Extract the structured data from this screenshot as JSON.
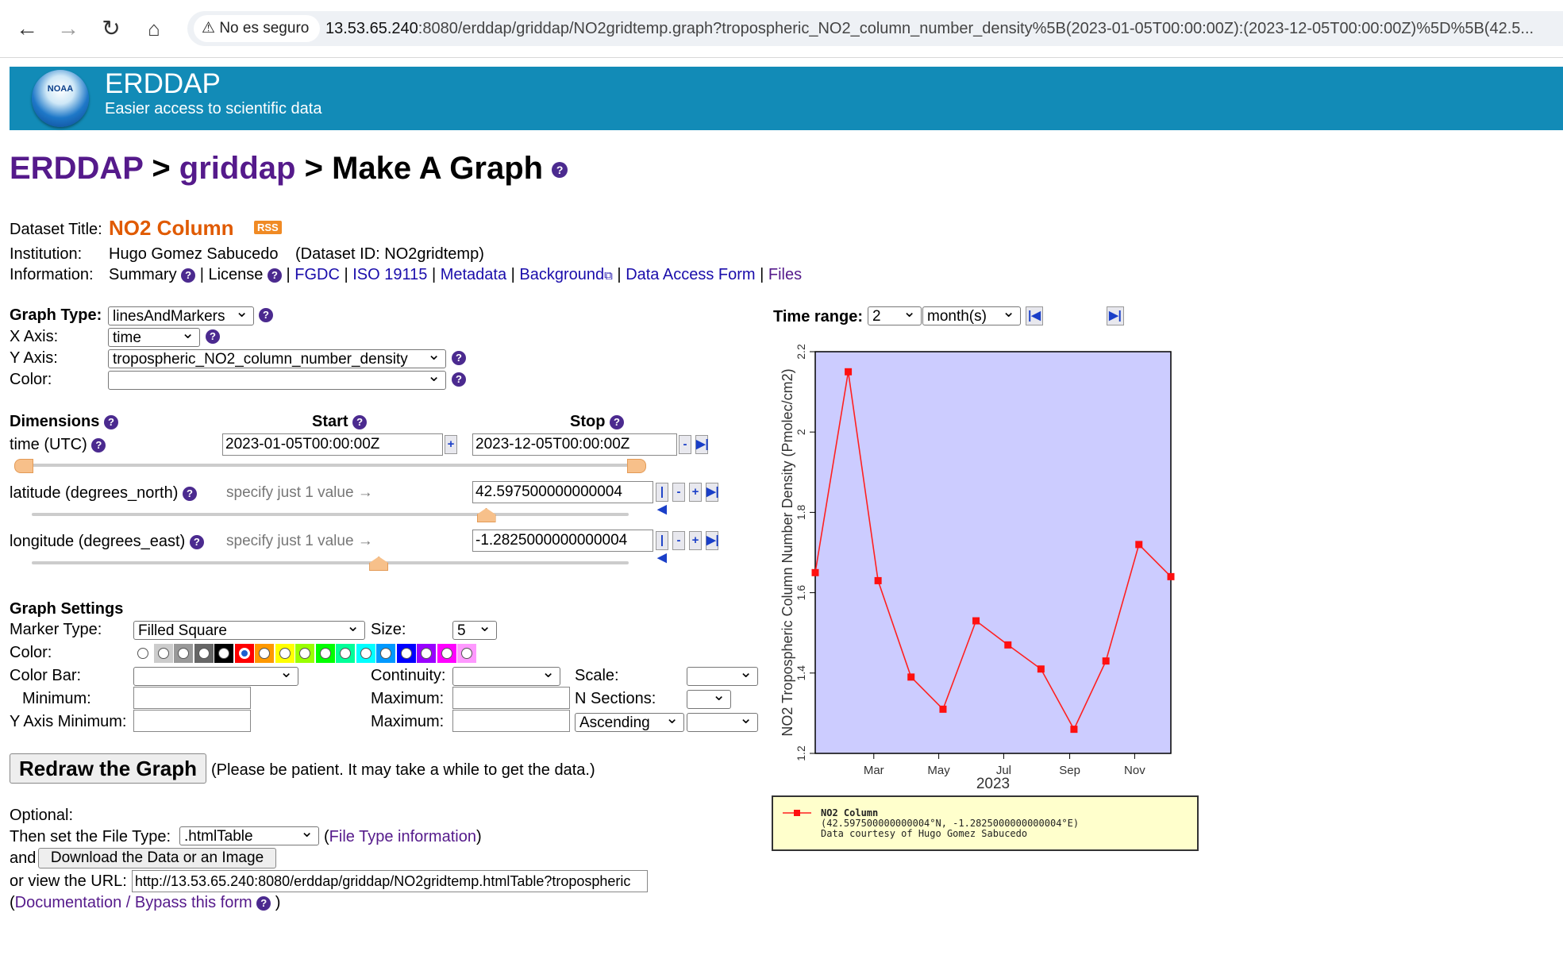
{
  "browser": {
    "security_label": "No es seguro",
    "url_host": "13.53.65.240",
    "url_rest": ":8080/erddap/griddap/NO2gridtemp.graph?tropospheric_NO2_column_number_density%5B(2023-01-05T00:00:00Z):(2023-12-05T00:00:00Z)%5D%5B(42.5..."
  },
  "banner": {
    "logo_text": "NOAA",
    "title": "ERDDAP",
    "subtitle": "Easier access to scientific data"
  },
  "breadcrumb": {
    "root": "ERDDAP",
    "sep": ">",
    "mid": "griddap",
    "current": "Make A Graph"
  },
  "dataset": {
    "title_label": "Dataset Title:",
    "title": "NO2 Column",
    "rss": "RSS",
    "institution_label": "Institution:",
    "institution": "Hugo Gomez Sabucedo",
    "dataset_id": "(Dataset ID: NO2gridtemp)",
    "information_label": "Information:",
    "links": {
      "summary": "Summary",
      "license": "License",
      "fgdc": "FGDC",
      "iso": "ISO 19115",
      "metadata": "Metadata",
      "background": "Background",
      "daf": "Data Access Form",
      "files": "Files"
    }
  },
  "form": {
    "graph_type_label": "Graph Type:",
    "graph_type": "linesAndMarkers",
    "x_axis_label": "X Axis:",
    "x_axis": "time",
    "y_axis_label": "Y Axis:",
    "y_axis": "tropospheric_NO2_column_number_density",
    "color_label": "Color:",
    "color": ""
  },
  "dimensions": {
    "heading": "Dimensions",
    "start_label": "Start",
    "stop_label": "Stop",
    "time_label": "time (UTC)",
    "time_start": "2023-01-05T00:00:00Z",
    "time_stop": "2023-12-05T00:00:00Z",
    "lat_label": "latitude (degrees_north)",
    "lat_hint": "specify just 1 value →",
    "lat_value": "42.597500000000004",
    "lon_label": "longitude (degrees_east)",
    "lon_hint": "specify just 1 value →",
    "lon_value": "-1.2825000000000004",
    "lat_slider_fraction": 0.76,
    "lon_slider_fraction": 0.58
  },
  "settings": {
    "heading": "Graph Settings",
    "marker_type_label": "Marker Type:",
    "marker_type": "Filled Square",
    "size_label": "Size:",
    "size": "5",
    "color_label": "Color:",
    "palette": [
      "#ffffff",
      "#cccccc",
      "#999999",
      "#666666",
      "#000000",
      "#ff0000",
      "#ff9900",
      "#ffff00",
      "#99ff00",
      "#00ff00",
      "#00ff99",
      "#00ffff",
      "#0099ff",
      "#0000ff",
      "#9900ff",
      "#ff00ff",
      "#ff99ff"
    ],
    "selected_color": "#ff0000",
    "color_bar_label": "Color Bar:",
    "continuity_label": "Continuity:",
    "scale_label": "Scale:",
    "minimum_label": "Minimum:",
    "maximum_label": "Maximum:",
    "nsections_label": "N Sections:",
    "y_min_label": "Y Axis Minimum:",
    "y_max_label": "Maximum:",
    "ascending": "Ascending"
  },
  "actions": {
    "redraw": "Redraw the Graph",
    "redraw_note": "(Please be patient. It may take a while to get the data.)",
    "optional": "Optional:",
    "file_type_label": "Then set the File Type:",
    "file_type": ".htmlTable",
    "file_type_info": "File Type information",
    "and_label": "and",
    "download": "Download the Data or an Image",
    "view_url_label": "or view the URL:",
    "view_url": "http://13.53.65.240:8080/erddap/griddap/NO2gridtemp.htmlTable?tropospheric",
    "documentation": "Documentation / Bypass this form"
  },
  "time_range": {
    "label": "Time range:",
    "value": "2",
    "unit": "month(s)"
  },
  "chart_data": {
    "type": "line",
    "title": "",
    "xlabel": "2023",
    "ylabel": "NO2 Tropospheric Column Number Density (Pmolec/cm2)",
    "x": [
      5,
      36,
      64,
      95,
      125,
      156,
      186,
      217,
      248,
      278,
      309,
      339
    ],
    "values": [
      1.65,
      2.15,
      1.63,
      1.39,
      1.31,
      1.53,
      1.47,
      1.41,
      1.26,
      1.43,
      1.72,
      1.64
    ],
    "xlim": [
      5,
      339
    ],
    "ylim": [
      1.2,
      2.2
    ],
    "x_ticks": [
      {
        "pos": 60,
        "label": "Mar"
      },
      {
        "pos": 121,
        "label": "May"
      },
      {
        "pos": 182,
        "label": "Jul"
      },
      {
        "pos": 244,
        "label": "Sep"
      },
      {
        "pos": 305,
        "label": "Nov"
      }
    ],
    "y_ticks": [
      1.2,
      1.4,
      1.6,
      1.8,
      2,
      2.2
    ],
    "series_color": "#ff0000",
    "legend": {
      "name": "NO2 Column",
      "coords": "(42.597500000000004°N, -1.2825000000000004°E)",
      "credit": "Data courtesy of Hugo Gomez Sabucedo"
    }
  }
}
